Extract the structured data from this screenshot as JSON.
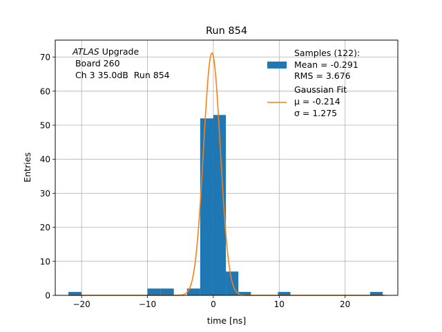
{
  "chart_data": {
    "type": "bar",
    "title": "Run 854",
    "xlabel": "time [ns]",
    "ylabel": "Entries",
    "xlim": [
      -24,
      28
    ],
    "ylim": [
      0,
      75
    ],
    "xticks": [
      -20,
      -10,
      0,
      10,
      20
    ],
    "xtick_labels": [
      "−20",
      "−10",
      "0",
      "10",
      "20"
    ],
    "yticks": [
      0,
      10,
      20,
      30,
      40,
      50,
      60,
      70
    ],
    "ytick_labels": [
      "0",
      "10",
      "20",
      "30",
      "40",
      "50",
      "60",
      "70"
    ],
    "grid": true,
    "annotation": {
      "experiment": "ATLAS",
      "line1_suffix": " Upgrade",
      "line2": " Board 260",
      "line3": " Ch 3 35.0dB  Run 854"
    },
    "histogram": {
      "name": "Samples",
      "color": "#1f77b4",
      "bins": [
        {
          "x0": -22.0,
          "x1": -20.0,
          "count": 1
        },
        {
          "x0": -10.0,
          "x1": -8.0,
          "count": 2
        },
        {
          "x0": -8.0,
          "x1": -6.0,
          "count": 2
        },
        {
          "x0": -4.0,
          "x1": -2.0,
          "count": 2
        },
        {
          "x0": -2.0,
          "x1": 0.0,
          "count": 52
        },
        {
          "x0": 0.0,
          "x1": 1.9,
          "count": 53
        },
        {
          "x0": 1.9,
          "x1": 3.8,
          "count": 7
        },
        {
          "x0": 3.8,
          "x1": 5.7,
          "count": 1
        },
        {
          "x0": 9.8,
          "x1": 11.7,
          "count": 1
        },
        {
          "x0": 23.8,
          "x1": 25.7,
          "count": 1
        }
      ]
    },
    "fit": {
      "name": "Gaussian Fit",
      "color": "#ff7f0e",
      "mu": -0.214,
      "sigma": 1.275,
      "amplitude": 71.2,
      "x_range": [
        -22,
        26
      ]
    },
    "legend": {
      "placement": "top-right",
      "entries": [
        {
          "lines": [
            "Samples (122):",
            "Mean = -0.291",
            "RMS = 3.676"
          ]
        },
        {
          "lines": [
            "Gaussian Fit",
            "μ = -0.214",
            "σ = 1.275"
          ]
        }
      ]
    }
  }
}
